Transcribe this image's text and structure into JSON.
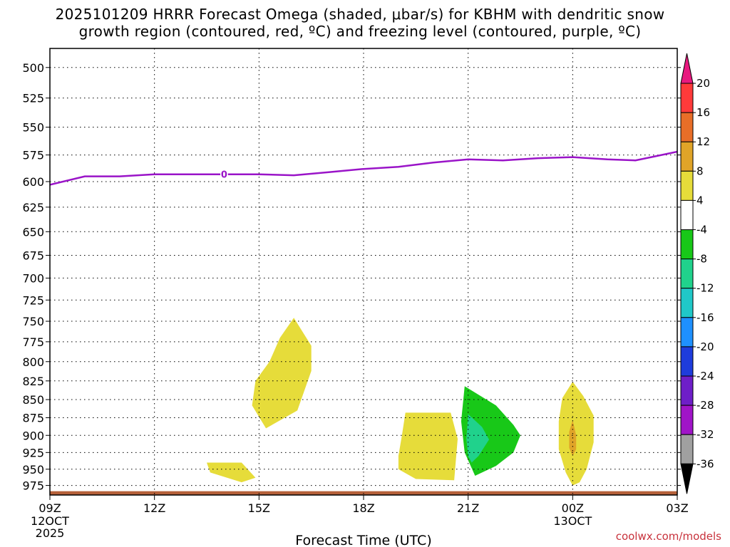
{
  "header": {
    "title_line1": "2025101209 HRRR Forecast Omega (shaded, μbar/s) for KBHM with dendritic snow",
    "title_line2": "growth region (contoured, red, ºC) and freezing level (contoured, purple, ºC)"
  },
  "credit": "coolwx.com/models",
  "chart_data": {
    "type": "heatmap",
    "title": "2025101209 HRRR Forecast Omega (shaded, μbar/s) for KBHM with dendritic snow growth region (contoured, red, ºC) and freezing level (contoured, purple, ºC)",
    "xlabel": "Forecast Time (UTC)",
    "ylabel": "",
    "x_range_hours": [
      0,
      18
    ],
    "y_range_hpa": [
      485,
      990
    ],
    "y_scale": "log-pressure",
    "grid": "dotted",
    "y_ticks": [
      500,
      525,
      550,
      575,
      600,
      625,
      650,
      675,
      700,
      725,
      750,
      775,
      800,
      825,
      850,
      875,
      900,
      925,
      950,
      975
    ],
    "x_ticks": [
      {
        "hour": 0,
        "label": "09Z",
        "sub1": "12OCT",
        "sub2": "2025"
      },
      {
        "hour": 3,
        "label": "12Z",
        "sub1": "",
        "sub2": ""
      },
      {
        "hour": 6,
        "label": "15Z",
        "sub1": "",
        "sub2": ""
      },
      {
        "hour": 9,
        "label": "18Z",
        "sub1": "",
        "sub2": ""
      },
      {
        "hour": 12,
        "label": "21Z",
        "sub1": "",
        "sub2": ""
      },
      {
        "hour": 15,
        "label": "00Z",
        "sub1": "13OCT",
        "sub2": ""
      },
      {
        "hour": 18,
        "label": "03Z",
        "sub1": "",
        "sub2": ""
      }
    ],
    "colorbar": {
      "labels": [
        "20",
        "16",
        "12",
        "8",
        "4",
        "-4",
        "-8",
        "-12",
        "-16",
        "-20",
        "-24",
        "-28",
        "-32",
        "-36"
      ],
      "colors": [
        "#e8197f",
        "#ff3a3a",
        "#e86e28",
        "#e0a428",
        "#e6dc3a",
        "#ffffff",
        "#18c818",
        "#20d28c",
        "#20c8c8",
        "#1e90ff",
        "#1e3cdc",
        "#6e1ec8",
        "#a014c8",
        "#a0a0a0",
        "#000000"
      ]
    },
    "series": [
      {
        "name": "freezing level",
        "color": "#9a14c8",
        "points": [
          [
            0,
            603
          ],
          [
            1,
            595
          ],
          [
            2,
            595
          ],
          [
            3,
            593
          ],
          [
            4,
            593
          ],
          [
            5,
            593
          ],
          [
            6,
            593
          ],
          [
            7,
            594
          ],
          [
            8,
            591
          ],
          [
            9,
            588
          ],
          [
            10,
            586
          ],
          [
            11,
            582
          ],
          [
            12,
            579
          ],
          [
            13,
            580
          ],
          [
            14,
            578
          ],
          [
            15,
            577
          ],
          [
            16,
            579
          ],
          [
            16.8,
            580
          ],
          [
            17.4,
            576
          ],
          [
            18,
            572
          ]
        ]
      }
    ],
    "freezing_label": {
      "hour": 5,
      "hpa": 593,
      "text": "0"
    },
    "omega_regions": [
      {
        "value_band": "4 to 8",
        "color": "#e6dc3a",
        "points": [
          [
            7,
            746
          ],
          [
            7.5,
            780
          ],
          [
            7.5,
            812
          ],
          [
            7.1,
            865
          ],
          [
            6.2,
            890
          ],
          [
            5.8,
            858
          ],
          [
            5.9,
            825
          ],
          [
            6.3,
            800
          ],
          [
            6.6,
            770
          ]
        ]
      },
      {
        "value_band": "4 to 8",
        "color": "#e6dc3a",
        "points": [
          [
            4.5,
            940
          ],
          [
            5.5,
            940
          ],
          [
            5.9,
            963
          ],
          [
            5.5,
            970
          ],
          [
            4.6,
            955
          ]
        ]
      },
      {
        "value_band": "4 to 8",
        "color": "#e6dc3a",
        "points": [
          [
            10.2,
            868
          ],
          [
            11.5,
            868
          ],
          [
            11.7,
            905
          ],
          [
            11.6,
            967
          ],
          [
            10.5,
            965
          ],
          [
            10,
            950
          ],
          [
            10,
            930
          ],
          [
            10.1,
            900
          ]
        ]
      },
      {
        "value_band": "-4 to -8",
        "color": "#18c818",
        "points": [
          [
            11.9,
            832
          ],
          [
            12.8,
            858
          ],
          [
            13.3,
            885
          ],
          [
            13.5,
            900
          ],
          [
            13.3,
            925
          ],
          [
            12.8,
            945
          ],
          [
            12.2,
            960
          ],
          [
            11.9,
            925
          ],
          [
            11.8,
            880
          ]
        ]
      },
      {
        "value_band": "-8 to -12",
        "color": "#20d28c",
        "points": [
          [
            12.0,
            870
          ],
          [
            12.4,
            888
          ],
          [
            12.6,
            906
          ],
          [
            12.3,
            930
          ],
          [
            12.1,
            940
          ],
          [
            12.0,
            930
          ],
          [
            11.95,
            905
          ]
        ]
      },
      {
        "value_band": "4 to 8",
        "color": "#e6dc3a",
        "points": [
          [
            15,
            826
          ],
          [
            15.3,
            845
          ],
          [
            15.6,
            872
          ],
          [
            15.6,
            910
          ],
          [
            15.4,
            950
          ],
          [
            15.2,
            970
          ],
          [
            15,
            975
          ],
          [
            14.8,
            955
          ],
          [
            14.6,
            920
          ],
          [
            14.6,
            880
          ],
          [
            14.7,
            848
          ]
        ]
      },
      {
        "value_band": "8 to 12",
        "color": "#e0a428",
        "points": [
          [
            15,
            878
          ],
          [
            15.1,
            900
          ],
          [
            15.1,
            920
          ],
          [
            15,
            930
          ],
          [
            14.9,
            918
          ],
          [
            14.9,
            895
          ]
        ]
      }
    ],
    "terrain": {
      "color": "#b5613a",
      "top_hpa": 984
    }
  }
}
